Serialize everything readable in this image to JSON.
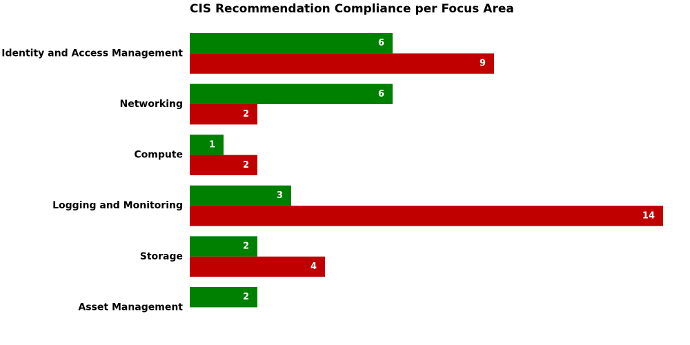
{
  "chart_data": {
    "type": "bar",
    "orientation": "horizontal",
    "title": "CIS Recommendation Compliance per Focus Area",
    "xlabel": "",
    "ylabel": "",
    "categories": [
      "Identity and Access Management",
      "Networking",
      "Compute",
      "Logging and Monitoring",
      "Storage",
      "Asset Management"
    ],
    "series": [
      {
        "color": "#008000",
        "values": [
          6,
          6,
          1,
          3,
          2,
          2
        ]
      },
      {
        "color": "#c00000",
        "values": [
          9,
          2,
          2,
          14,
          4,
          0
        ]
      }
    ],
    "xlim": [
      0,
      14
    ],
    "grid": false,
    "axes_visible": false,
    "data_labels": true
  }
}
